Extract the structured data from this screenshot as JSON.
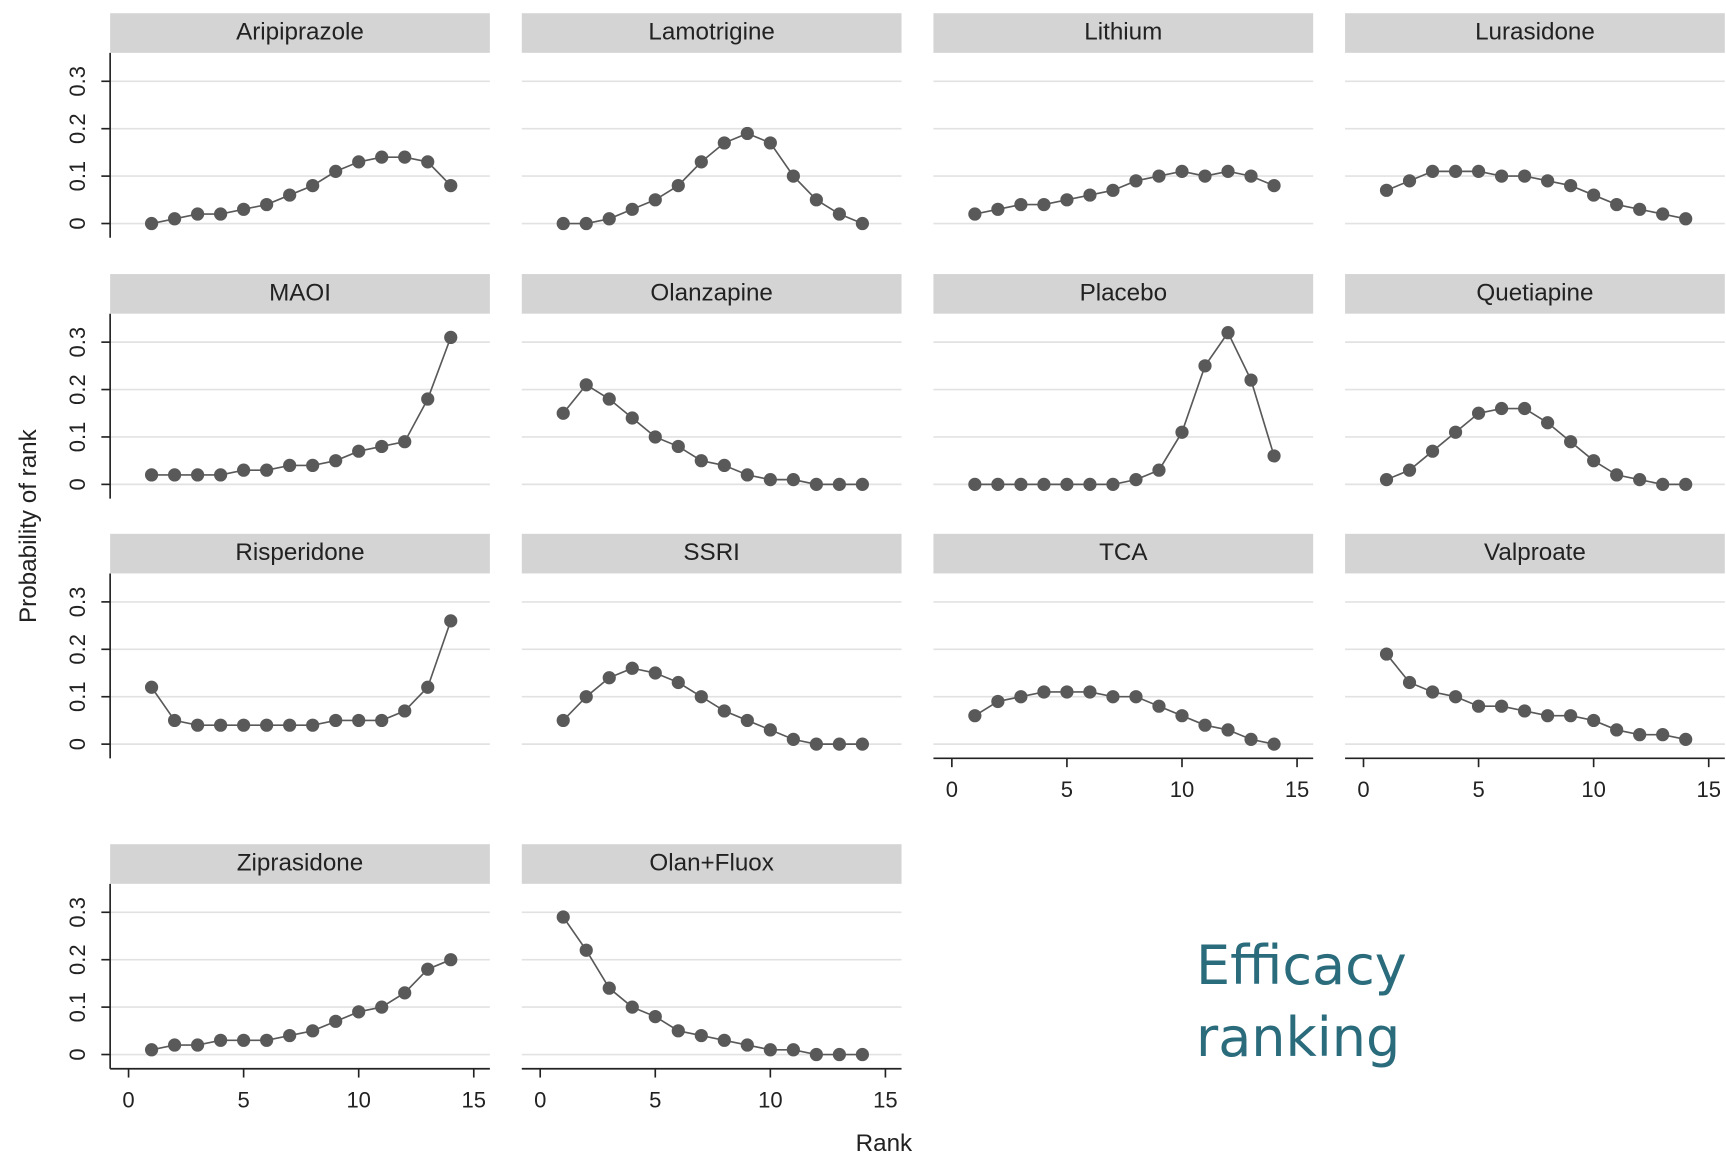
{
  "chart_data": [
    {
      "type": "line",
      "title": "Aripiprazole",
      "x": [
        1,
        2,
        3,
        4,
        5,
        6,
        7,
        8,
        9,
        10,
        11,
        12,
        13,
        14
      ],
      "values": [
        0,
        0.01,
        0.02,
        0.02,
        0.03,
        0.04,
        0.06,
        0.08,
        0.11,
        0.13,
        0.14,
        0.14,
        0.13,
        0.08
      ],
      "color": "#595959",
      "xlim": [
        -0.8,
        15.7
      ],
      "ylim": [
        -0.03,
        0.36
      ],
      "yticks": [
        0,
        0.1,
        0.2,
        0.3
      ],
      "grid": true,
      "y_axis": true
    },
    {
      "type": "line",
      "title": "Lamotrigine",
      "x": [
        1,
        2,
        3,
        4,
        5,
        6,
        7,
        8,
        9,
        10,
        11,
        12,
        13,
        14
      ],
      "values": [
        0,
        0,
        0.01,
        0.03,
        0.05,
        0.08,
        0.13,
        0.17,
        0.19,
        0.17,
        0.1,
        0.05,
        0.02,
        0
      ],
      "color": "#595959",
      "xlim": [
        -0.8,
        15.7
      ],
      "ylim": [
        -0.03,
        0.36
      ],
      "yticks": [
        0,
        0.1,
        0.2,
        0.3
      ],
      "grid": true,
      "y_axis": false
    },
    {
      "type": "line",
      "title": "Lithium",
      "x": [
        1,
        2,
        3,
        4,
        5,
        6,
        7,
        8,
        9,
        10,
        11,
        12,
        13,
        14
      ],
      "values": [
        0.02,
        0.03,
        0.04,
        0.04,
        0.05,
        0.06,
        0.07,
        0.09,
        0.1,
        0.11,
        0.1,
        0.11,
        0.1,
        0.08
      ],
      "color": "#595959",
      "xlim": [
        -0.8,
        15.7
      ],
      "ylim": [
        -0.03,
        0.36
      ],
      "yticks": [
        0,
        0.1,
        0.2,
        0.3
      ],
      "grid": true,
      "y_axis": false
    },
    {
      "type": "line",
      "title": "Lurasidone",
      "x": [
        1,
        2,
        3,
        4,
        5,
        6,
        7,
        8,
        9,
        10,
        11,
        12,
        13,
        14
      ],
      "values": [
        0.07,
        0.09,
        0.11,
        0.11,
        0.11,
        0.1,
        0.1,
        0.09,
        0.08,
        0.06,
        0.04,
        0.03,
        0.02,
        0.01
      ],
      "color": "#595959",
      "xlim": [
        -0.8,
        15.7
      ],
      "ylim": [
        -0.03,
        0.36
      ],
      "yticks": [
        0,
        0.1,
        0.2,
        0.3
      ],
      "grid": true,
      "y_axis": false
    },
    {
      "type": "line",
      "title": "MAOI",
      "x": [
        1,
        2,
        3,
        4,
        5,
        6,
        7,
        8,
        9,
        10,
        11,
        12,
        13,
        14
      ],
      "values": [
        0.02,
        0.02,
        0.02,
        0.02,
        0.03,
        0.03,
        0.04,
        0.04,
        0.05,
        0.07,
        0.08,
        0.09,
        0.18,
        0.31
      ],
      "color": "#595959",
      "xlim": [
        -0.8,
        15.7
      ],
      "ylim": [
        -0.03,
        0.36
      ],
      "yticks": [
        0,
        0.1,
        0.2,
        0.3
      ],
      "grid": true,
      "y_axis": true
    },
    {
      "type": "line",
      "title": "Olanzapine",
      "x": [
        1,
        2,
        3,
        4,
        5,
        6,
        7,
        8,
        9,
        10,
        11,
        12,
        13,
        14
      ],
      "values": [
        0.15,
        0.21,
        0.18,
        0.14,
        0.1,
        0.08,
        0.05,
        0.04,
        0.02,
        0.01,
        0.01,
        0,
        0,
        0
      ],
      "color": "#595959",
      "xlim": [
        -0.8,
        15.7
      ],
      "ylim": [
        -0.03,
        0.36
      ],
      "yticks": [
        0,
        0.1,
        0.2,
        0.3
      ],
      "grid": true,
      "y_axis": false
    },
    {
      "type": "line",
      "title": "Placebo",
      "x": [
        1,
        2,
        3,
        4,
        5,
        6,
        7,
        8,
        9,
        10,
        11,
        12,
        13,
        14
      ],
      "values": [
        0,
        0,
        0,
        0,
        0,
        0,
        0,
        0.01,
        0.03,
        0.11,
        0.25,
        0.32,
        0.22,
        0.06
      ],
      "color": "#595959",
      "xlim": [
        -0.8,
        15.7
      ],
      "ylim": [
        -0.03,
        0.36
      ],
      "yticks": [
        0,
        0.1,
        0.2,
        0.3
      ],
      "grid": true,
      "y_axis": false
    },
    {
      "type": "line",
      "title": "Quetiapine",
      "x": [
        1,
        2,
        3,
        4,
        5,
        6,
        7,
        8,
        9,
        10,
        11,
        12,
        13,
        14
      ],
      "values": [
        0.01,
        0.03,
        0.07,
        0.11,
        0.15,
        0.16,
        0.16,
        0.13,
        0.09,
        0.05,
        0.02,
        0.01,
        0,
        0
      ],
      "color": "#595959",
      "xlim": [
        -0.8,
        15.7
      ],
      "ylim": [
        -0.03,
        0.36
      ],
      "yticks": [
        0,
        0.1,
        0.2,
        0.3
      ],
      "grid": true,
      "y_axis": false
    },
    {
      "type": "line",
      "title": "Risperidone",
      "x": [
        1,
        2,
        3,
        4,
        5,
        6,
        7,
        8,
        9,
        10,
        11,
        12,
        13,
        14
      ],
      "values": [
        0.12,
        0.05,
        0.04,
        0.04,
        0.04,
        0.04,
        0.04,
        0.04,
        0.05,
        0.05,
        0.05,
        0.07,
        0.12,
        0.26
      ],
      "color": "#595959",
      "xlim": [
        -0.8,
        15.7
      ],
      "ylim": [
        -0.03,
        0.36
      ],
      "yticks": [
        0,
        0.1,
        0.2,
        0.3
      ],
      "grid": true,
      "y_axis": true
    },
    {
      "type": "line",
      "title": "SSRI",
      "x": [
        1,
        2,
        3,
        4,
        5,
        6,
        7,
        8,
        9,
        10,
        11,
        12,
        13,
        14
      ],
      "values": [
        0.05,
        0.1,
        0.14,
        0.16,
        0.15,
        0.13,
        0.1,
        0.07,
        0.05,
        0.03,
        0.01,
        0,
        0,
        0
      ],
      "color": "#595959",
      "xlim": [
        -0.8,
        15.7
      ],
      "ylim": [
        -0.03,
        0.36
      ],
      "yticks": [
        0,
        0.1,
        0.2,
        0.3
      ],
      "grid": true,
      "y_axis": false
    },
    {
      "type": "line",
      "title": "TCA",
      "x": [
        1,
        2,
        3,
        4,
        5,
        6,
        7,
        8,
        9,
        10,
        11,
        12,
        13,
        14
      ],
      "values": [
        0.06,
        0.09,
        0.1,
        0.11,
        0.11,
        0.11,
        0.1,
        0.1,
        0.08,
        0.06,
        0.04,
        0.03,
        0.01,
        0
      ],
      "color": "#595959",
      "xlim": [
        -0.8,
        15.7
      ],
      "xticks": [
        0,
        5,
        10,
        15
      ],
      "ylim": [
        -0.03,
        0.36
      ],
      "yticks": [
        0,
        0.1,
        0.2,
        0.3
      ],
      "grid": true,
      "y_axis": false
    },
    {
      "type": "line",
      "title": "Valproate",
      "x": [
        1,
        2,
        3,
        4,
        5,
        6,
        7,
        8,
        9,
        10,
        11,
        12,
        13,
        14
      ],
      "values": [
        0.19,
        0.13,
        0.11,
        0.1,
        0.08,
        0.08,
        0.07,
        0.06,
        0.06,
        0.05,
        0.03,
        0.02,
        0.02,
        0.01
      ],
      "color": "#595959",
      "xlim": [
        -0.8,
        15.7
      ],
      "xticks": [
        0,
        5,
        10,
        15
      ],
      "ylim": [
        -0.03,
        0.36
      ],
      "yticks": [
        0,
        0.1,
        0.2,
        0.3
      ],
      "grid": true,
      "y_axis": false
    },
    {
      "type": "line",
      "title": "Ziprasidone",
      "x": [
        1,
        2,
        3,
        4,
        5,
        6,
        7,
        8,
        9,
        10,
        11,
        12,
        13,
        14
      ],
      "values": [
        0.01,
        0.02,
        0.02,
        0.03,
        0.03,
        0.03,
        0.04,
        0.05,
        0.07,
        0.09,
        0.1,
        0.13,
        0.18,
        0.2
      ],
      "color": "#595959",
      "xlim": [
        -0.8,
        15.7
      ],
      "xticks": [
        0,
        5,
        10,
        15
      ],
      "ylim": [
        -0.03,
        0.36
      ],
      "yticks": [
        0,
        0.1,
        0.2,
        0.3
      ],
      "grid": true,
      "y_axis": true
    },
    {
      "type": "line",
      "title": "Olan+Fluox",
      "x": [
        1,
        2,
        3,
        4,
        5,
        6,
        7,
        8,
        9,
        10,
        11,
        12,
        13,
        14
      ],
      "values": [
        0.29,
        0.22,
        0.14,
        0.1,
        0.08,
        0.05,
        0.04,
        0.03,
        0.02,
        0.01,
        0.01,
        0,
        0,
        0
      ],
      "color": "#595959",
      "xlim": [
        -0.8,
        15.7
      ],
      "xticks": [
        0,
        5,
        10,
        15
      ],
      "ylim": [
        -0.03,
        0.36
      ],
      "yticks": [
        0,
        0.1,
        0.2,
        0.3
      ],
      "grid": true,
      "y_axis": false
    }
  ],
  "ylabel": "Probability of rank",
  "xlabel": "Rank",
  "annotation": "Efficacy ranking"
}
